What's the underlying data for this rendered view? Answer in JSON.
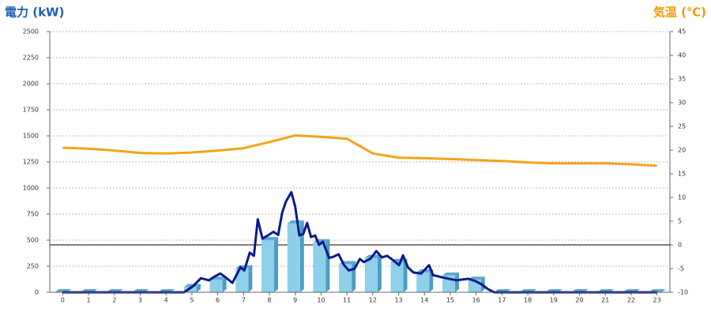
{
  "chart_data": {
    "type": "bar",
    "title": "電力 (kW)",
    "y2_title": "気温 (℃)",
    "title_color": "#1a5fb4",
    "y2_title_color": "#f39800",
    "categories": [
      "0",
      "1",
      "2",
      "3",
      "4",
      "5",
      "6",
      "7",
      "8",
      "9",
      "10",
      "11",
      "12",
      "13",
      "14",
      "15",
      "16",
      "17",
      "18",
      "19",
      "20",
      "21",
      "22",
      "23"
    ],
    "ylim": [
      0,
      2500
    ],
    "yticks": [
      0,
      250,
      500,
      750,
      1000,
      1250,
      1500,
      1750,
      2000,
      2250,
      2500
    ],
    "y2lim": [
      -10,
      45
    ],
    "y2ticks": [
      -10,
      -5,
      0,
      5,
      10,
      15,
      20,
      25,
      30,
      35,
      40,
      45
    ],
    "grid": true,
    "y2_zero_line": true,
    "series": [
      {
        "type": "bar",
        "color": "#8ecfea",
        "values": [
          0,
          0,
          0,
          0,
          0,
          50,
          120,
          230,
          500,
          660,
          480,
          270,
          330,
          290,
          190,
          160,
          120,
          0,
          0,
          0,
          0,
          0,
          0,
          0
        ]
      },
      {
        "type": "line",
        "color": "#0a1a8c",
        "x": [
          0,
          4.7,
          5.05,
          5.35,
          5.66,
          5.87,
          6.1,
          6.27,
          6.57,
          6.88,
          7.03,
          7.24,
          7.4,
          7.55,
          7.73,
          7.94,
          8.15,
          8.34,
          8.49,
          8.64,
          8.85,
          9.0,
          9.16,
          9.31,
          9.46,
          9.61,
          9.77,
          9.92,
          10.07,
          10.31,
          10.47,
          10.68,
          10.89,
          11.07,
          11.29,
          11.5,
          11.65,
          11.9,
          12.14,
          12.35,
          12.56,
          12.8,
          13.02,
          13.17,
          13.36,
          13.57,
          13.87,
          14.18,
          14.33,
          14.57,
          14.94,
          15.24,
          15.7,
          16.0,
          16.22,
          16.46,
          16.7,
          23
        ],
        "values": [
          0,
          0,
          60,
          135,
          115,
          150,
          180,
          150,
          90,
          240,
          210,
          380,
          350,
          700,
          515,
          545,
          580,
          550,
          760,
          870,
          960,
          820,
          545,
          560,
          665,
          530,
          545,
          455,
          485,
          330,
          340,
          365,
          260,
          210,
          225,
          320,
          290,
          320,
          395,
          335,
          350,
          305,
          260,
          355,
          240,
          190,
          180,
          260,
          165,
          150,
          130,
          115,
          130,
          105,
          75,
          30,
          0,
          0
        ]
      },
      {
        "type": "line",
        "axis": "y2",
        "color": "#f5a31a",
        "values": [
          20.5,
          20.3,
          19.9,
          19.4,
          19.3,
          19.5,
          19.9,
          20.4,
          21.7,
          23.1,
          22.8,
          22.4,
          19.3,
          18.4,
          18.3,
          18.1,
          17.9,
          17.7,
          17.4,
          17.2,
          17.2,
          17.2,
          17.0,
          16.7
        ]
      }
    ]
  }
}
